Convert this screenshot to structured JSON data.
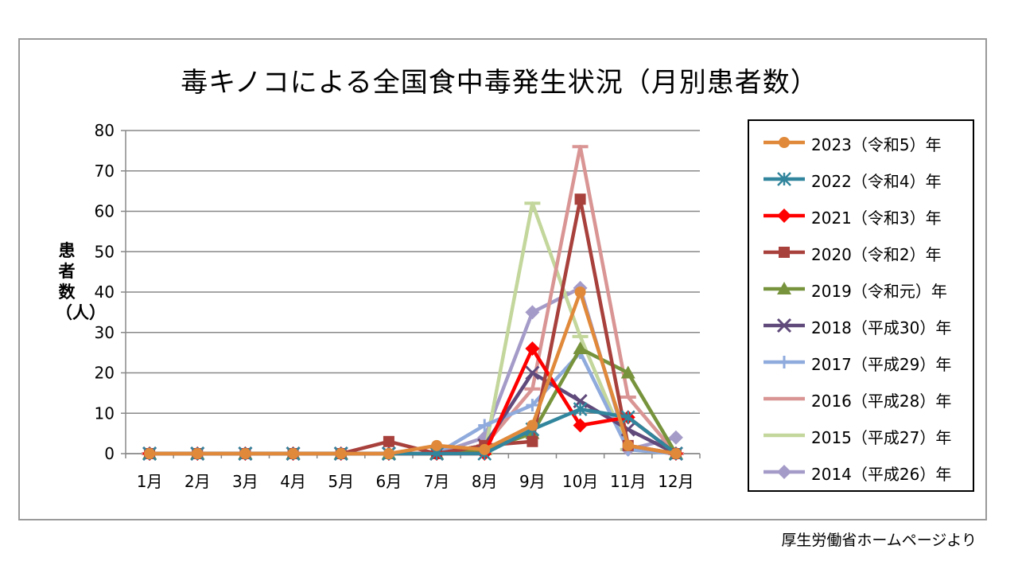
{
  "source_note": "厚生労働省ホームページより",
  "chart_data": {
    "type": "line",
    "title": "毒キノコによる全国食中毒発生状況（月別患者数）",
    "ylabel": "患者数（人）",
    "xlabel": "",
    "ylim": [
      0,
      80
    ],
    "yticks": [
      "0",
      "10",
      "20",
      "30",
      "40",
      "50",
      "60",
      "70",
      "80"
    ],
    "categories": [
      "1月",
      "2月",
      "3月",
      "4月",
      "5月",
      "6月",
      "7月",
      "8月",
      "9月",
      "10月",
      "11月",
      "12月"
    ],
    "grid": true,
    "legend_position": "right",
    "series": [
      {
        "name": "2023（令和5）年",
        "color": "#e0893a",
        "marker": "circle",
        "values": [
          0,
          0,
          0,
          0,
          0,
          0,
          2,
          1,
          7,
          40,
          2,
          0
        ]
      },
      {
        "name": "2022（令和4）年",
        "color": "#31859c",
        "marker": "asterisk",
        "values": [
          0,
          0,
          0,
          0,
          0,
          0,
          0,
          0,
          6,
          11,
          9,
          0
        ]
      },
      {
        "name": "2021（令和3）年",
        "color": "#ff0000",
        "marker": "diamond",
        "values": [
          0,
          0,
          0,
          0,
          0,
          0,
          0,
          0,
          26,
          7,
          9,
          0
        ]
      },
      {
        "name": "2020（令和2）年",
        "color": "#a8403c",
        "marker": "square",
        "values": [
          0,
          0,
          0,
          0,
          0,
          3,
          0,
          2,
          3,
          63,
          2,
          0
        ]
      },
      {
        "name": "2019（令和元）年",
        "color": "#77933c",
        "marker": "triangle",
        "values": [
          0,
          0,
          0,
          0,
          0,
          0,
          0,
          1,
          5,
          26,
          20,
          0
        ]
      },
      {
        "name": "2018（平成30）年",
        "color": "#604a7b",
        "marker": "x",
        "values": [
          0,
          0,
          0,
          0,
          0,
          0,
          0,
          2,
          20,
          13,
          6,
          0
        ]
      },
      {
        "name": "2017（平成29）年",
        "color": "#8faadc",
        "marker": "plus",
        "values": [
          0,
          0,
          0,
          0,
          0,
          0,
          0,
          7,
          12,
          25,
          1,
          0
        ]
      },
      {
        "name": "2016（平成28）年",
        "color": "#d99594",
        "marker": "dash",
        "values": [
          0,
          0,
          0,
          0,
          0,
          0,
          0,
          2,
          16,
          76,
          14,
          0
        ]
      },
      {
        "name": "2015（平成27）年",
        "color": "#c3d69b",
        "marker": "dash",
        "values": [
          0,
          0,
          0,
          0,
          0,
          0,
          0,
          0,
          62,
          29,
          1,
          0
        ]
      },
      {
        "name": "2014（平成26）年",
        "color": "#a59bc8",
        "marker": "diamond",
        "values": [
          0,
          0,
          0,
          0,
          0,
          0,
          0,
          4,
          35,
          41,
          1,
          4
        ]
      }
    ]
  }
}
